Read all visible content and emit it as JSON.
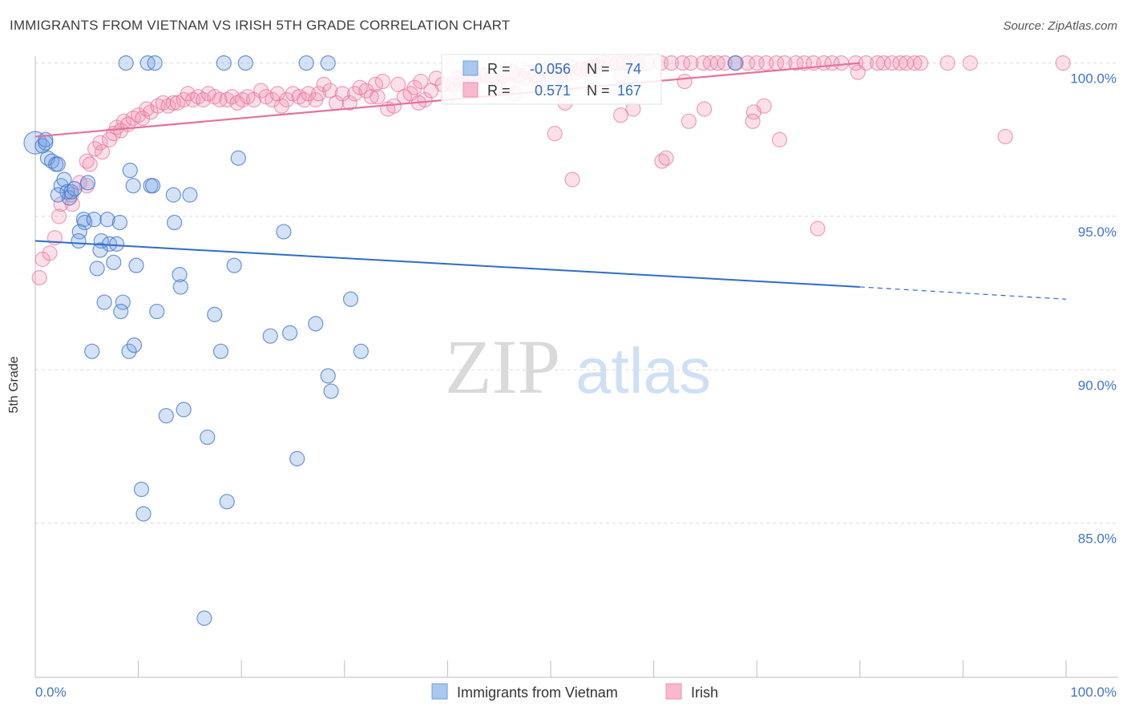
{
  "header": {
    "title": "IMMIGRANTS FROM VIETNAM VS IRISH 5TH GRADE CORRELATION CHART",
    "source": "Source: ZipAtlas.com"
  },
  "watermark": {
    "zip": "ZIP",
    "atlas": "atlas"
  },
  "colors": {
    "blue": "#6f9fe2",
    "blue_line": "#2f6cc8",
    "pink": "#f08fb0",
    "pink_line": "#e8709a",
    "tick": "#3f74c9"
  },
  "chart_data": {
    "type": "scatter",
    "title": "IMMIGRANTS FROM VIETNAM VS IRISH 5TH GRADE CORRELATION CHART",
    "xlabel": "",
    "ylabel": "5th Grade",
    "xlim": [
      0,
      100
    ],
    "ylim": [
      80.5,
      100.7
    ],
    "x_tick_labels": [
      "0.0%",
      "100.0%"
    ],
    "y_ticks": [
      85,
      90,
      95,
      100
    ],
    "y_tick_labels": [
      "85.0%",
      "90.0%",
      "95.0%",
      "100.0%"
    ],
    "legend": {
      "position": "top-center",
      "rows": [
        {
          "r_label": "R = ",
          "r_value": "-0.056",
          "n_label": "N = ",
          "n_value": "74"
        },
        {
          "r_label": "R = ",
          "r_value": "0.571",
          "n_label": "N = ",
          "n_value": "167"
        }
      ]
    },
    "bottom_legend": [
      "Immigrants from Vietnam",
      "Irish"
    ],
    "series": [
      {
        "name": "Immigrants from Vietnam",
        "color": "#6f9fe2",
        "trend": {
          "x": [
            0,
            80
          ],
          "y": [
            94.2,
            92.7
          ],
          "dashed_to": [
            100,
            92.3
          ]
        },
        "points": [
          [
            0.0,
            97.4
          ],
          [
            0.7,
            97.3
          ],
          [
            1.0,
            97.4
          ],
          [
            1.2,
            96.9
          ],
          [
            1.6,
            96.8
          ],
          [
            2.0,
            96.7
          ],
          [
            2.2,
            96.7
          ],
          [
            2.5,
            96.0
          ],
          [
            2.8,
            96.2
          ],
          [
            3.1,
            95.8
          ],
          [
            3.3,
            95.6
          ],
          [
            3.5,
            95.8
          ],
          [
            5.1,
            96.1
          ],
          [
            4.7,
            94.9
          ],
          [
            4.8,
            94.8
          ],
          [
            5.7,
            94.9
          ],
          [
            7.0,
            94.9
          ],
          [
            8.2,
            94.8
          ],
          [
            4.3,
            94.5
          ],
          [
            4.2,
            94.2
          ],
          [
            6.4,
            94.2
          ],
          [
            7.2,
            94.1
          ],
          [
            7.9,
            94.1
          ],
          [
            6.3,
            93.9
          ],
          [
            7.6,
            93.5
          ],
          [
            9.8,
            93.4
          ],
          [
            6.0,
            93.3
          ],
          [
            6.7,
            92.2
          ],
          [
            8.5,
            92.2
          ],
          [
            8.3,
            91.9
          ],
          [
            11.8,
            91.9
          ],
          [
            8.8,
            100.0
          ],
          [
            10.9,
            100.0
          ],
          [
            11.6,
            100.0
          ],
          [
            18.3,
            100.0
          ],
          [
            20.4,
            100.0
          ],
          [
            26.3,
            100.0
          ],
          [
            28.4,
            100.0
          ],
          [
            9.2,
            96.5
          ],
          [
            11.2,
            96.0
          ],
          [
            11.4,
            96.0
          ],
          [
            13.4,
            95.7
          ],
          [
            15.0,
            95.7
          ],
          [
            13.5,
            94.8
          ],
          [
            19.7,
            96.9
          ],
          [
            24.1,
            94.5
          ],
          [
            14.0,
            93.1
          ],
          [
            14.1,
            92.7
          ],
          [
            19.3,
            93.4
          ],
          [
            17.4,
            91.8
          ],
          [
            30.6,
            92.3
          ],
          [
            27.2,
            91.5
          ],
          [
            22.8,
            91.1
          ],
          [
            24.7,
            91.2
          ],
          [
            5.5,
            90.6
          ],
          [
            9.1,
            90.6
          ],
          [
            9.6,
            90.8
          ],
          [
            18.0,
            90.6
          ],
          [
            31.6,
            90.6
          ],
          [
            28.4,
            89.8
          ],
          [
            28.7,
            89.3
          ],
          [
            14.4,
            88.7
          ],
          [
            12.7,
            88.5
          ],
          [
            16.7,
            87.8
          ],
          [
            25.4,
            87.1
          ],
          [
            10.3,
            86.1
          ],
          [
            10.5,
            85.3
          ],
          [
            18.6,
            85.7
          ],
          [
            16.4,
            81.9
          ],
          [
            67.9,
            100.0
          ],
          [
            1.0,
            97.5
          ],
          [
            2.2,
            95.7
          ],
          [
            3.8,
            95.9
          ],
          [
            9.5,
            96.0
          ]
        ]
      },
      {
        "name": "Irish",
        "color": "#f08fb0",
        "trend": {
          "x": [
            0,
            80
          ],
          "y": [
            97.6,
            100.0
          ]
        },
        "points": [
          [
            0.4,
            93.0
          ],
          [
            0.7,
            93.6
          ],
          [
            1.4,
            93.8
          ],
          [
            1.9,
            94.3
          ],
          [
            2.3,
            95.0
          ],
          [
            2.5,
            95.4
          ],
          [
            3.6,
            95.4
          ],
          [
            3.5,
            95.7
          ],
          [
            4.3,
            96.1
          ],
          [
            5.0,
            96.0
          ],
          [
            5.0,
            96.8
          ],
          [
            5.3,
            96.7
          ],
          [
            5.8,
            97.2
          ],
          [
            6.3,
            97.4
          ],
          [
            6.5,
            97.1
          ],
          [
            7.2,
            97.5
          ],
          [
            7.6,
            97.7
          ],
          [
            7.9,
            97.9
          ],
          [
            8.3,
            97.8
          ],
          [
            8.6,
            98.1
          ],
          [
            9.0,
            98.0
          ],
          [
            9.5,
            98.2
          ],
          [
            10.0,
            98.3
          ],
          [
            10.4,
            98.2
          ],
          [
            10.8,
            98.5
          ],
          [
            11.2,
            98.4
          ],
          [
            11.9,
            98.6
          ],
          [
            12.4,
            98.7
          ],
          [
            12.9,
            98.6
          ],
          [
            13.4,
            98.7
          ],
          [
            13.8,
            98.7
          ],
          [
            14.4,
            98.8
          ],
          [
            14.8,
            99.0
          ],
          [
            15.3,
            98.8
          ],
          [
            15.8,
            98.9
          ],
          [
            16.3,
            98.8
          ],
          [
            16.8,
            99.0
          ],
          [
            17.4,
            98.9
          ],
          [
            17.9,
            98.8
          ],
          [
            18.6,
            98.8
          ],
          [
            19.1,
            98.9
          ],
          [
            19.6,
            98.7
          ],
          [
            20.1,
            98.8
          ],
          [
            20.6,
            98.9
          ],
          [
            21.2,
            98.8
          ],
          [
            21.9,
            99.1
          ],
          [
            22.4,
            98.9
          ],
          [
            23.0,
            98.8
          ],
          [
            23.5,
            99.0
          ],
          [
            23.9,
            98.6
          ],
          [
            24.4,
            98.8
          ],
          [
            25.0,
            99.0
          ],
          [
            25.6,
            98.9
          ],
          [
            26.1,
            98.8
          ],
          [
            26.5,
            99.0
          ],
          [
            27.2,
            98.8
          ],
          [
            27.5,
            99.0
          ],
          [
            28.0,
            99.3
          ],
          [
            28.6,
            99.1
          ],
          [
            29.2,
            98.7
          ],
          [
            29.8,
            99.0
          ],
          [
            30.5,
            98.7
          ],
          [
            31.0,
            99.0
          ],
          [
            31.5,
            99.2
          ],
          [
            32.1,
            99.1
          ],
          [
            32.6,
            98.9
          ],
          [
            33.0,
            99.3
          ],
          [
            33.7,
            99.4
          ],
          [
            34.2,
            98.5
          ],
          [
            34.8,
            98.6
          ],
          [
            35.2,
            99.3
          ],
          [
            35.8,
            98.9
          ],
          [
            36.4,
            99.0
          ],
          [
            36.8,
            99.2
          ],
          [
            37.4,
            99.4
          ],
          [
            37.8,
            98.8
          ],
          [
            38.4,
            99.1
          ],
          [
            38.9,
            99.5
          ],
          [
            39.5,
            99.3
          ],
          [
            40.1,
            98.9
          ],
          [
            40.5,
            99.3
          ],
          [
            40.9,
            99.5
          ],
          [
            41.3,
            99.3
          ],
          [
            42.0,
            99.6
          ],
          [
            42.6,
            99.5
          ],
          [
            43.3,
            99.6
          ],
          [
            43.8,
            99.6
          ],
          [
            44.3,
            99.5
          ],
          [
            44.9,
            99.2
          ],
          [
            45.4,
            99.6
          ],
          [
            45.9,
            99.3
          ],
          [
            46.3,
            99.7
          ],
          [
            46.9,
            99.6
          ],
          [
            47.4,
            99.5
          ],
          [
            47.8,
            99.7
          ],
          [
            48.5,
            99.6
          ],
          [
            48.9,
            99.4
          ],
          [
            49.5,
            99.8
          ],
          [
            49.9,
            99.7
          ],
          [
            50.4,
            99.8
          ],
          [
            50.9,
            99.6
          ],
          [
            51.3,
            99.6
          ],
          [
            51.9,
            99.9
          ],
          [
            52.5,
            99.7
          ],
          [
            52.9,
            99.8
          ],
          [
            53.6,
            99.8
          ],
          [
            54.1,
            99.9
          ],
          [
            54.6,
            99.9
          ],
          [
            55.1,
            100.0
          ],
          [
            55.8,
            100.0
          ],
          [
            56.5,
            100.0
          ],
          [
            57.1,
            100.0
          ],
          [
            57.6,
            100.0
          ],
          [
            58.4,
            100.0
          ],
          [
            59.4,
            100.0
          ],
          [
            60.7,
            100.0
          ],
          [
            61.7,
            100.0
          ],
          [
            62.8,
            100.0
          ],
          [
            63.6,
            100.0
          ],
          [
            64.8,
            100.0
          ],
          [
            65.5,
            100.0
          ],
          [
            66.2,
            100.0
          ],
          [
            66.9,
            100.0
          ],
          [
            68.0,
            100.0
          ],
          [
            69.1,
            100.0
          ],
          [
            70.0,
            100.0
          ],
          [
            70.9,
            100.0
          ],
          [
            71.9,
            100.0
          ],
          [
            72.7,
            100.0
          ],
          [
            73.8,
            100.0
          ],
          [
            74.6,
            100.0
          ],
          [
            75.5,
            100.0
          ],
          [
            76.5,
            100.0
          ],
          [
            77.3,
            100.0
          ],
          [
            78.2,
            100.0
          ],
          [
            79.6,
            100.0
          ],
          [
            80.6,
            100.0
          ],
          [
            81.7,
            100.0
          ],
          [
            82.3,
            100.0
          ],
          [
            83.1,
            100.0
          ],
          [
            83.9,
            100.0
          ],
          [
            84.5,
            100.0
          ],
          [
            85.3,
            100.0
          ],
          [
            85.9,
            100.0
          ],
          [
            88.5,
            100.0
          ],
          [
            90.7,
            100.0
          ],
          [
            99.7,
            100.0
          ],
          [
            79.8,
            99.7
          ],
          [
            63.0,
            99.4
          ],
          [
            56.8,
            99.6
          ],
          [
            46.5,
            99.0
          ],
          [
            51.4,
            98.7
          ],
          [
            58.0,
            98.5
          ],
          [
            64.9,
            98.5
          ],
          [
            70.7,
            98.6
          ],
          [
            69.7,
            98.4
          ],
          [
            56.8,
            98.3
          ],
          [
            63.4,
            98.1
          ],
          [
            69.6,
            98.1
          ],
          [
            50.4,
            97.7
          ],
          [
            72.2,
            97.5
          ],
          [
            94.1,
            97.6
          ],
          [
            60.8,
            96.8
          ],
          [
            61.2,
            96.9
          ],
          [
            52.1,
            96.2
          ],
          [
            75.9,
            94.6
          ],
          [
            33.2,
            98.9
          ],
          [
            37.2,
            98.7
          ]
        ]
      }
    ]
  }
}
